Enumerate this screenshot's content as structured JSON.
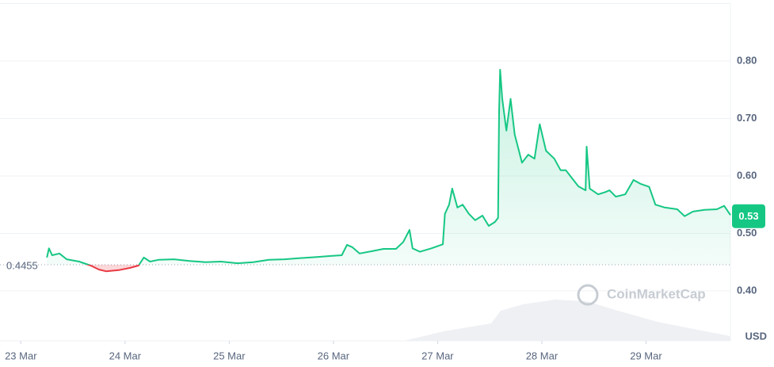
{
  "chart_data": {
    "type": "line",
    "x": [
      0.25,
      0.27,
      0.3,
      0.37,
      0.44,
      0.56,
      0.67,
      0.75,
      0.82,
      0.94,
      1.05,
      1.13,
      1.18,
      1.24,
      1.32,
      1.47,
      1.62,
      1.77,
      1.92,
      2.08,
      2.23,
      2.38,
      2.53,
      2.68,
      2.84,
      2.99,
      3.08,
      3.13,
      3.18,
      3.25,
      3.37,
      3.48,
      3.6,
      3.67,
      3.73,
      3.76,
      3.83,
      3.94,
      4.05,
      4.07,
      4.11,
      4.14,
      4.19,
      4.24,
      4.3,
      4.36,
      4.43,
      4.49,
      4.55,
      4.58,
      4.59,
      4.6,
      4.62,
      4.66,
      4.7,
      4.74,
      4.78,
      4.81,
      4.87,
      4.93,
      4.98,
      5.04,
      5.12,
      5.18,
      5.23,
      5.29,
      5.35,
      5.42,
      5.43,
      5.46,
      5.54,
      5.61,
      5.65,
      5.71,
      5.8,
      5.88,
      5.95,
      6.03,
      6.09,
      6.18,
      6.3,
      6.37,
      6.45,
      6.56,
      6.68,
      6.75,
      6.81
    ],
    "series": [
      {
        "name": "Price",
        "color": "#16c784",
        "down_color": "#ea3943",
        "values": [
          0.458,
          0.474,
          0.462,
          0.465,
          0.455,
          0.451,
          0.444,
          0.437,
          0.434,
          0.436,
          0.44,
          0.444,
          0.458,
          0.451,
          0.454,
          0.455,
          0.452,
          0.45,
          0.451,
          0.448,
          0.45,
          0.454,
          0.455,
          0.457,
          0.459,
          0.461,
          0.462,
          0.48,
          0.476,
          0.465,
          0.469,
          0.473,
          0.473,
          0.485,
          0.506,
          0.474,
          0.468,
          0.474,
          0.481,
          0.534,
          0.55,
          0.578,
          0.545,
          0.55,
          0.534,
          0.523,
          0.531,
          0.513,
          0.52,
          0.527,
          0.713,
          0.785,
          0.734,
          0.679,
          0.734,
          0.672,
          0.644,
          0.623,
          0.637,
          0.63,
          0.69,
          0.644,
          0.63,
          0.61,
          0.61,
          0.596,
          0.582,
          0.575,
          0.651,
          0.578,
          0.568,
          0.572,
          0.575,
          0.564,
          0.568,
          0.593,
          0.586,
          0.581,
          0.55,
          0.545,
          0.542,
          0.53,
          0.538,
          0.541,
          0.542,
          0.548,
          0.532
        ]
      }
    ],
    "baseline": 0.4455,
    "current_price": 0.53,
    "currency": "USD",
    "watermark": "CoinMarketCap",
    "xlim": [
      -0.2,
      6.81
    ],
    "xticks": [
      {
        "value": 0,
        "label": "23 Mar"
      },
      {
        "value": 1,
        "label": "24 Mar"
      },
      {
        "value": 2,
        "label": "25 Mar"
      },
      {
        "value": 3,
        "label": "26 Mar"
      },
      {
        "value": 4,
        "label": "27 Mar"
      },
      {
        "value": 5,
        "label": "28 Mar"
      },
      {
        "value": 6,
        "label": "29 Mar"
      }
    ],
    "ylim": [
      0.313,
      0.9
    ],
    "yticks": [
      {
        "value": 0.4,
        "label": "0.40"
      },
      {
        "value": 0.5,
        "label": "0.50"
      },
      {
        "value": 0.6,
        "label": "0.60"
      },
      {
        "value": 0.7,
        "label": "0.70"
      },
      {
        "value": 0.8,
        "label": "0.80"
      }
    ],
    "grid": true
  }
}
